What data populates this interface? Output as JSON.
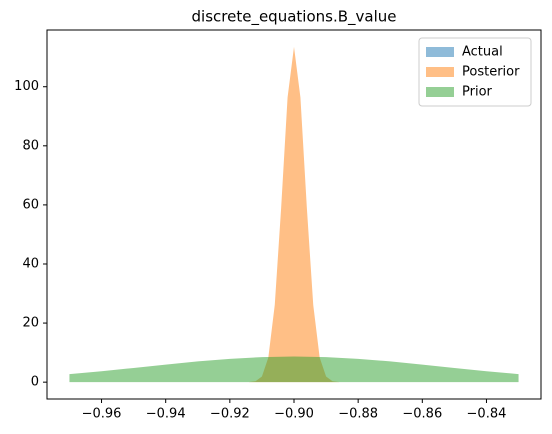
{
  "chart_data": {
    "type": "area",
    "title": "discrete_equations.B_value",
    "xlim": [
      -0.977,
      -0.823
    ],
    "ylim": [
      -5.7,
      119.2
    ],
    "xticks": [
      {
        "value": -0.96,
        "label": "−0.96"
      },
      {
        "value": -0.94,
        "label": "−0.94"
      },
      {
        "value": -0.92,
        "label": "−0.92"
      },
      {
        "value": -0.9,
        "label": "−0.90"
      },
      {
        "value": -0.88,
        "label": "−0.88"
      },
      {
        "value": -0.86,
        "label": "−0.86"
      },
      {
        "value": -0.84,
        "label": "−0.84"
      }
    ],
    "yticks": [
      0,
      20,
      40,
      60,
      80,
      100
    ],
    "grid": false,
    "legend": "upper right",
    "opacity": 0.5,
    "series": [
      {
        "name": "Actual",
        "color": "#1f77b4",
        "x": [],
        "values": []
      },
      {
        "name": "Posterior",
        "color": "#ff7f0e",
        "x": [
          -0.914,
          -0.912,
          -0.91,
          -0.908,
          -0.906,
          -0.904,
          -0.902,
          -0.9,
          -0.898,
          -0.896,
          -0.894,
          -0.892,
          -0.89,
          -0.888,
          -0.886
        ],
        "values": [
          0.04,
          0.32,
          1.91,
          8.33,
          26.1,
          59.1,
          96.4,
          113.5,
          96.4,
          59.1,
          26.1,
          8.33,
          1.91,
          0.32,
          0.04
        ]
      },
      {
        "name": "Prior",
        "color": "#2ca02c",
        "x": [
          -0.97,
          -0.96,
          -0.95,
          -0.94,
          -0.93,
          -0.92,
          -0.91,
          -0.9,
          -0.89,
          -0.88,
          -0.87,
          -0.86,
          -0.85,
          -0.84,
          -0.83
        ],
        "values": [
          2.72,
          3.7,
          4.8,
          5.94,
          7.02,
          7.9,
          8.49,
          8.69,
          8.49,
          7.9,
          7.02,
          5.94,
          4.8,
          3.7,
          2.72
        ]
      }
    ]
  }
}
